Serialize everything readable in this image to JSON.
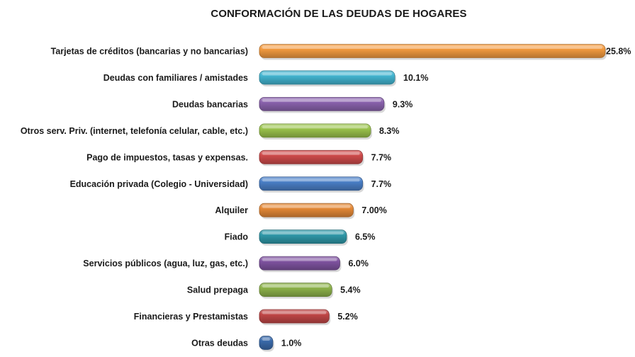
{
  "chart_data": {
    "type": "bar",
    "orientation": "horizontal",
    "title": "CONFORMACIÓN DE LAS DEUDAS DE HOGARES",
    "categories": [
      "Tarjetas de créditos (bancarias y no bancarias)",
      "Deudas con familiares / amistades",
      "Deudas bancarias",
      "Otros serv. Priv. (internet, telefonía celular, cable, etc.)",
      "Pago de impuestos, tasas y expensas.",
      "Educación privada (Colegio - Universidad)",
      "Alquiler",
      "Fiado",
      "Servicios públicos (agua, luz, gas, etc.)",
      "Salud prepaga",
      "Financieras y Prestamistas",
      "Otras deudas"
    ],
    "values": [
      25.8,
      10.1,
      9.3,
      8.3,
      7.7,
      7.7,
      7.0,
      6.5,
      6.0,
      5.4,
      5.2,
      1.0
    ],
    "value_labels": [
      "25.8%",
      "10.1%",
      "9.3%",
      "8.3%",
      "7.7%",
      "7.7%",
      "7.00%",
      "6.5%",
      "6.0%",
      "5.4%",
      "5.2%",
      "1.0%"
    ],
    "colors": [
      "#f39a3f",
      "#43b5d1",
      "#8a62ad",
      "#9ac34c",
      "#cf4b4b",
      "#4a7fc7",
      "#e48836",
      "#2f98a8",
      "#7f53a0",
      "#8db24a",
      "#c04646",
      "#3a6aaa"
    ],
    "xlim": [
      0,
      26
    ],
    "grid": false,
    "legend": "none"
  }
}
